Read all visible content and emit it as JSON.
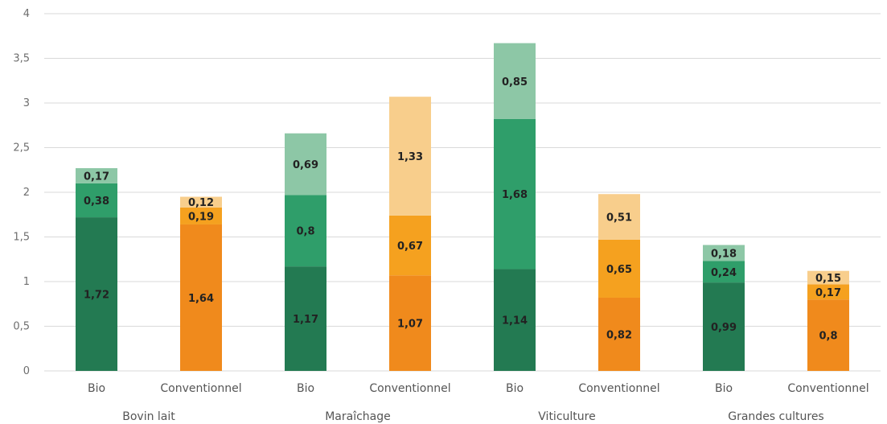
{
  "chart_data": {
    "type": "bar",
    "stacked": true,
    "ylim": [
      0,
      4
    ],
    "yticks": [
      "0",
      "0,5",
      "1",
      "1,5",
      "2",
      "2,5",
      "3",
      "3,5",
      "4"
    ],
    "grid": true,
    "groups": [
      {
        "label": "Bovin lait",
        "bars": [
          {
            "label": "Bio",
            "kind": "bio",
            "segments": [
              {
                "value": 1.72,
                "label": "1,72"
              },
              {
                "value": 0.38,
                "label": "0,38"
              },
              {
                "value": 0.17,
                "label": "0,17"
              }
            ]
          },
          {
            "label": "Conventionnel",
            "kind": "conv",
            "segments": [
              {
                "value": 1.64,
                "label": "1,64"
              },
              {
                "value": 0.19,
                "label": "0,19"
              },
              {
                "value": 0.12,
                "label": "0,12"
              }
            ]
          }
        ]
      },
      {
        "label": "Maraîchage",
        "bars": [
          {
            "label": "Bio",
            "kind": "bio",
            "segments": [
              {
                "value": 1.17,
                "label": "1,17"
              },
              {
                "value": 0.8,
                "label": "0,8"
              },
              {
                "value": 0.69,
                "label": "0,69"
              }
            ]
          },
          {
            "label": "Conventionnel",
            "kind": "conv",
            "segments": [
              {
                "value": 1.07,
                "label": "1,07"
              },
              {
                "value": 0.67,
                "label": "0,67"
              },
              {
                "value": 1.33,
                "label": "1,33"
              }
            ]
          }
        ]
      },
      {
        "label": "Viticulture",
        "bars": [
          {
            "label": "Bio",
            "kind": "bio",
            "segments": [
              {
                "value": 1.14,
                "label": "1,14"
              },
              {
                "value": 1.68,
                "label": "1,68"
              },
              {
                "value": 0.85,
                "label": "0,85"
              }
            ]
          },
          {
            "label": "Conventionnel",
            "kind": "conv",
            "segments": [
              {
                "value": 0.82,
                "label": "0,82"
              },
              {
                "value": 0.65,
                "label": "0,65"
              },
              {
                "value": 0.51,
                "label": "0,51"
              }
            ]
          }
        ]
      },
      {
        "label": "Grandes cultures",
        "bars": [
          {
            "label": "Bio",
            "kind": "bio",
            "segments": [
              {
                "value": 0.99,
                "label": "0,99"
              },
              {
                "value": 0.24,
                "label": "0,24"
              },
              {
                "value": 0.18,
                "label": "0,18"
              }
            ]
          },
          {
            "label": "Conventionnel",
            "kind": "conv",
            "segments": [
              {
                "value": 0.8,
                "label": "0,8"
              },
              {
                "value": 0.17,
                "label": "0,17"
              },
              {
                "value": 0.15,
                "label": "0,15"
              }
            ]
          }
        ]
      }
    ],
    "colors": {
      "bio": [
        "#237a52",
        "#2f9e6a",
        "#8dc7a6"
      ],
      "conv": [
        "#f08a1c",
        "#f5a11f",
        "#f8ce8c"
      ]
    }
  }
}
